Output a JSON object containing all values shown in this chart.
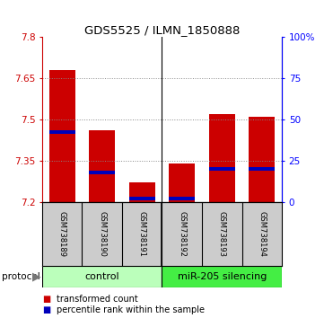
{
  "title": "GDS5525 / ILMN_1850888",
  "categories": [
    "GSM738189",
    "GSM738190",
    "GSM738191",
    "GSM738192",
    "GSM738193",
    "GSM738194"
  ],
  "red_values": [
    7.68,
    7.46,
    7.27,
    7.34,
    7.52,
    7.51
  ],
  "blue_percentiles": [
    42,
    18,
    2,
    2,
    20,
    20
  ],
  "ylim_left": [
    7.2,
    7.8
  ],
  "ylim_right": [
    0,
    100
  ],
  "yticks_left": [
    7.2,
    7.35,
    7.5,
    7.65,
    7.8
  ],
  "yticks_right": [
    0,
    25,
    50,
    75,
    100
  ],
  "ytick_labels_left": [
    "7.2",
    "7.35",
    "7.5",
    "7.65",
    "7.8"
  ],
  "ytick_labels_right": [
    "0",
    "25",
    "50",
    "75",
    "100%"
  ],
  "bar_base": 7.2,
  "bar_width": 0.65,
  "red_color": "#cc0000",
  "blue_color": "#0000bb",
  "grid_color": "#888888",
  "bg_color": "#ffffff",
  "control_bg": "#bbffbb",
  "silencing_bg": "#44ee44",
  "label_bg": "#cccccc",
  "legend_red": "transformed count",
  "legend_blue": "percentile rank within the sample",
  "n_control": 3,
  "n_total": 6
}
